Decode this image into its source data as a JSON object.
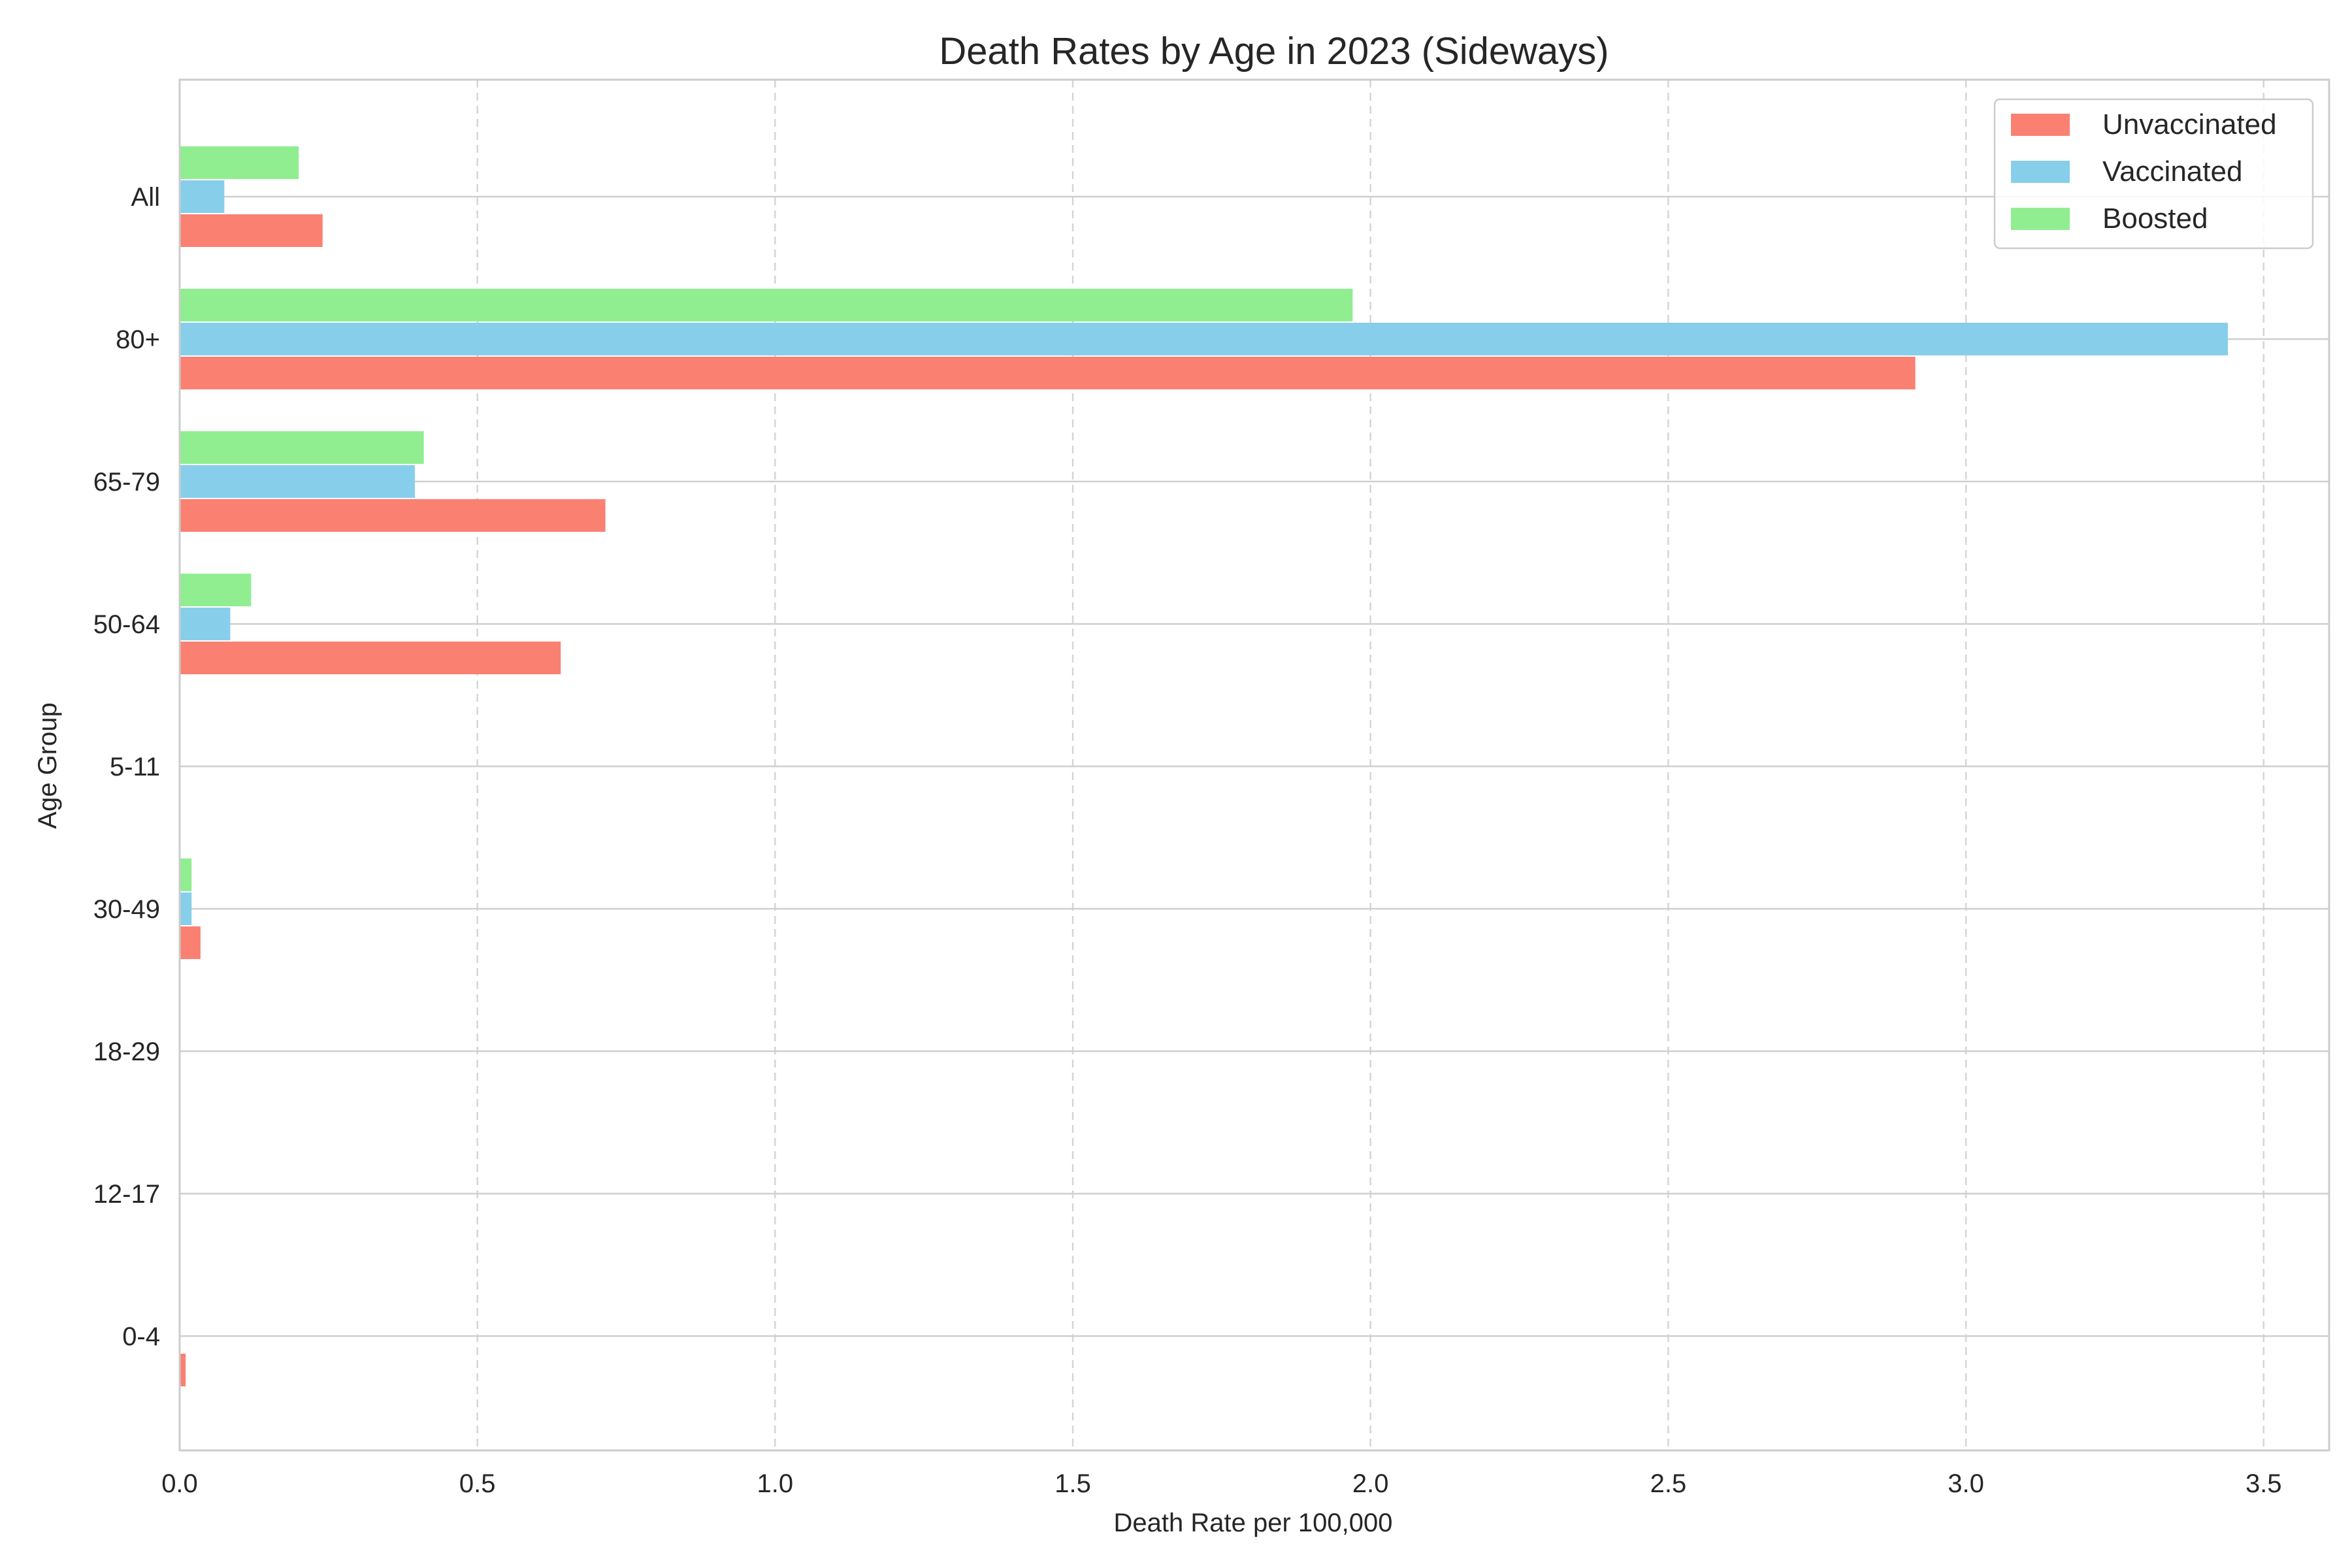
{
  "chart_data": {
    "type": "bar",
    "orientation": "horizontal",
    "title": "Death Rates by Age in 2023 (Sideways)",
    "xlabel": "Death Rate per 100,000",
    "ylabel": "Age Group",
    "categories": [
      "0-4",
      "12-17",
      "18-29",
      "30-49",
      "5-11",
      "50-64",
      "65-79",
      "80+",
      "All"
    ],
    "series": [
      {
        "name": "Unvaccinated",
        "color": "#FA8072",
        "values": [
          0.01,
          0,
          0,
          0.035,
          0,
          0.64,
          0.715,
          2.915,
          0.24
        ]
      },
      {
        "name": "Vaccinated",
        "color": "#87CEEB",
        "values": [
          0,
          0,
          0,
          0.02,
          0,
          0.085,
          0.395,
          3.44,
          0.075
        ]
      },
      {
        "name": "Boosted",
        "color": "#90EE90",
        "values": [
          0,
          0,
          0,
          0.02,
          0,
          0.12,
          0.41,
          1.97,
          0.2
        ]
      }
    ],
    "xlim": [
      0,
      3.61
    ],
    "xticks": [
      "0.0",
      "0.5",
      "1.0",
      "1.5",
      "2.0",
      "2.5",
      "3.0",
      "3.5"
    ],
    "xtick_values": [
      0,
      0.5,
      1.0,
      1.5,
      2.0,
      2.5,
      3.0,
      3.5
    ],
    "grid": true,
    "legend_position": "top-right"
  }
}
